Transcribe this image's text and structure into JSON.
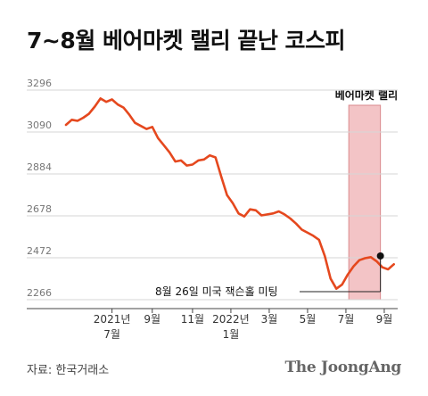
{
  "title": "7~8월 베어마켓 랠리 끝난 코스피",
  "source": "자료: 한국거래소",
  "brand": "The JoongAng",
  "colors": {
    "line": "#e5481e",
    "band": "#f3c4c6",
    "band_edge": "#d98a8e",
    "grid": "#d6d6d6",
    "axis": "#444444"
  },
  "chart_data": {
    "type": "line",
    "title": "7~8월 베어마켓 랠리 끝난 코스피",
    "xlabel": "",
    "ylabel": "",
    "ylim": [
      2266,
      3296
    ],
    "yticks": [
      2266,
      2472,
      2678,
      2884,
      3090,
      3296
    ],
    "grid": true,
    "xticks": [
      {
        "t": 2.4,
        "lines": [
          "2021년",
          "7월"
        ]
      },
      {
        "t": 4.5,
        "lines": [
          "9월"
        ]
      },
      {
        "t": 6.6,
        "lines": [
          "11월"
        ]
      },
      {
        "t": 8.6,
        "lines": [
          "2022년",
          "1월"
        ]
      },
      {
        "t": 10.6,
        "lines": [
          "3월"
        ]
      },
      {
        "t": 12.6,
        "lines": [
          "5월"
        ]
      },
      {
        "t": 14.6,
        "lines": [
          "7월"
        ]
      },
      {
        "t": 16.6,
        "lines": [
          "9월"
        ]
      }
    ],
    "series": [
      {
        "x": [
          0.0,
          0.3,
          0.6,
          0.9,
          1.2,
          1.5,
          1.8,
          2.1,
          2.4,
          2.7,
          3.0,
          3.3,
          3.6,
          3.9,
          4.2,
          4.5,
          4.8,
          5.1,
          5.4,
          5.7,
          6.0,
          6.3,
          6.6,
          6.9,
          7.2,
          7.5,
          7.8,
          8.1,
          8.4,
          8.7,
          9.0,
          9.3,
          9.6,
          9.9,
          10.2,
          10.5,
          10.8,
          11.1,
          11.4,
          11.7,
          12.0,
          12.3,
          12.6,
          12.9,
          13.2,
          13.5,
          13.8,
          14.1,
          14.4,
          14.7,
          15.0,
          15.3,
          15.6,
          15.9,
          16.2,
          16.5,
          16.8,
          17.1
        ],
        "y": [
          3125,
          3150,
          3145,
          3160,
          3180,
          3215,
          3255,
          3238,
          3250,
          3225,
          3210,
          3175,
          3135,
          3120,
          3105,
          3115,
          3060,
          3025,
          2990,
          2945,
          2950,
          2925,
          2930,
          2950,
          2955,
          2975,
          2965,
          2870,
          2780,
          2740,
          2690,
          2675,
          2710,
          2705,
          2680,
          2685,
          2690,
          2700,
          2685,
          2665,
          2640,
          2610,
          2595,
          2580,
          2560,
          2480,
          2370,
          2320,
          2340,
          2390,
          2430,
          2460,
          2470,
          2475,
          2455,
          2425,
          2415,
          2440
        ],
        "values_note": ""
      }
    ],
    "bear_market_rally": {
      "label": "베어마켓 랠리",
      "x_start": 14.75,
      "x_end": 16.4
    },
    "annotation": {
      "text": "8월 26일 미국 잭슨홀 미팅",
      "x": 16.4,
      "y": 2481
    }
  }
}
